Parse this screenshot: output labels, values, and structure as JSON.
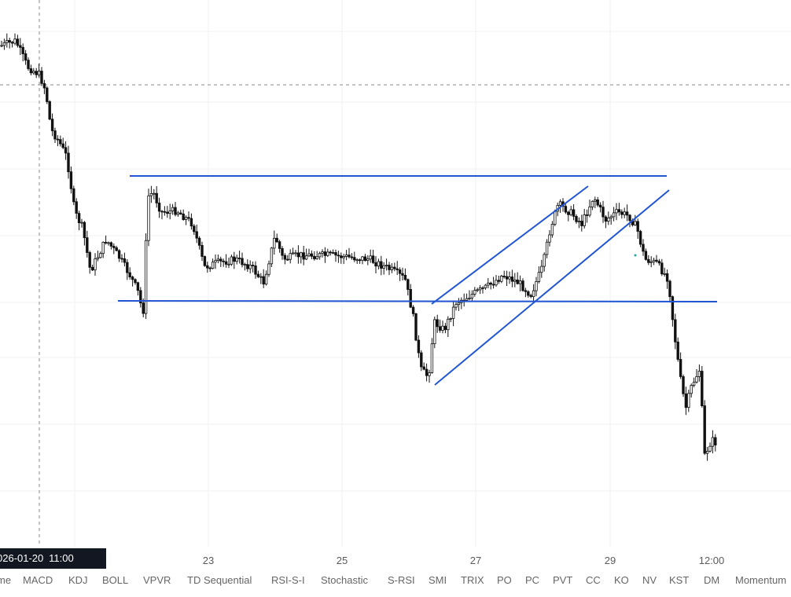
{
  "crosshair": {
    "date_label": "026-01-20",
    "time_label": "11:00"
  },
  "x_axis": {
    "ticks": [
      "23",
      "25",
      "27",
      "29",
      "12:00"
    ]
  },
  "indicators": [
    "me",
    "MACD",
    "KDJ",
    "BOLL",
    "VPVR",
    "TD Sequential",
    "RSI-S-I",
    "Stochastic",
    "S-RSI",
    "SMI",
    "TRIX",
    "PO",
    "PC",
    "PVT",
    "CC",
    "KO",
    "NV",
    "KST",
    "DM",
    "Momentum"
  ],
  "colors": {
    "drawing_line": "#2255d4",
    "candle": "#111111",
    "grid": "#f0f0f0",
    "crosshair": "#888888"
  },
  "chart_data": {
    "type": "candlestick",
    "drawings": [
      "horizontal-resistance",
      "horizontal-support",
      "ascending-channel-upper",
      "ascending-channel-lower"
    ]
  }
}
